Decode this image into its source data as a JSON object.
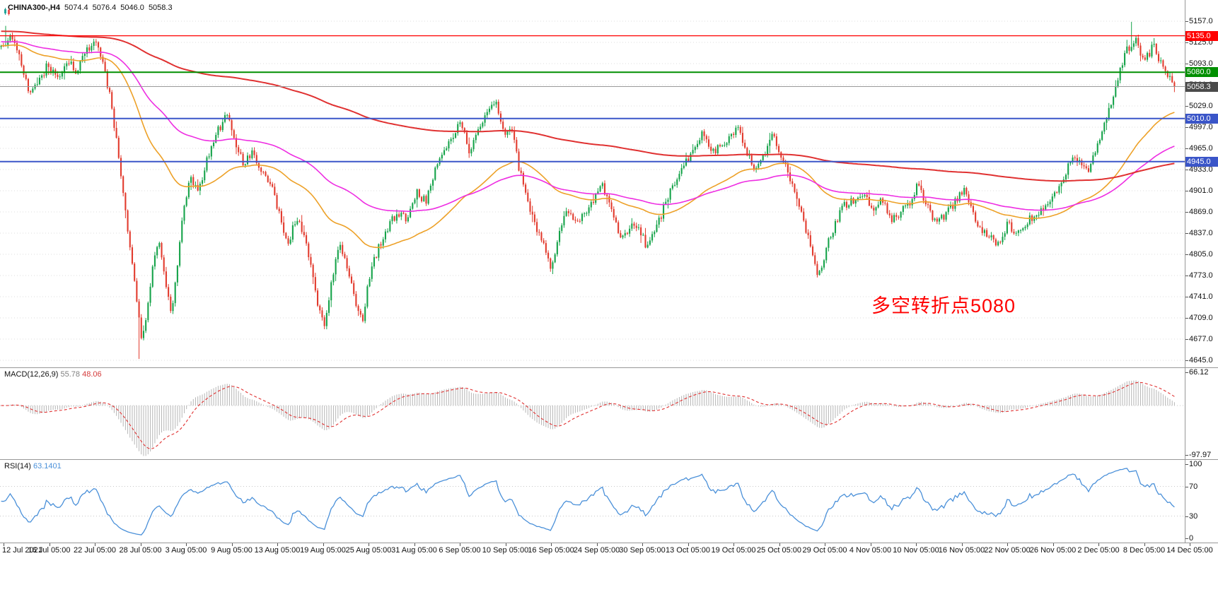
{
  "header": {
    "symbol_tf": "CHINA300-,H4",
    "open": "5074.4",
    "high": "5076.4",
    "low": "5046.0",
    "close": "5058.3"
  },
  "chart_data": {
    "type": "candlestick",
    "title": "CHINA300-,H4",
    "symbol": "CHINA300-",
    "timeframe": "H4",
    "current_bar": {
      "open": 5074.4,
      "high": 5076.4,
      "low": 5046.0,
      "close": 5058.3
    },
    "ylim": [
      4645,
      5157
    ],
    "y_ticks": [
      "5157.0",
      "5125.0",
      "5093.0",
      "5061.0",
      "5029.0",
      "4997.0",
      "4965.0",
      "4933.0",
      "4901.0",
      "4869.0",
      "4837.0",
      "4805.0",
      "4773.0",
      "4741.0",
      "4709.0",
      "4677.0",
      "4645.0"
    ],
    "x_labels": [
      "12 Jul 2021",
      "16 Jul 05:00",
      "22 Jul 05:00",
      "28 Jul 05:00",
      "3 Aug 05:00",
      "9 Aug 05:00",
      "13 Aug 05:00",
      "19 Aug 05:00",
      "25 Aug 05:00",
      "31 Aug 05:00",
      "6 Sep 05:00",
      "10 Sep 05:00",
      "16 Sep 05:00",
      "24 Sep 05:00",
      "30 Sep 05:00",
      "13 Oct 05:00",
      "19 Oct 05:00",
      "25 Oct 05:00",
      "29 Oct 05:00",
      "4 Nov 05:00",
      "10 Nov 05:00",
      "16 Nov 05:00",
      "22 Nov 05:00",
      "26 Nov 05:00",
      "2 Dec 05:00",
      "8 Dec 05:00",
      "14 Dec 05:00"
    ],
    "n_candles": 520,
    "last_close": 5058.3,
    "price_path": [
      [
        0,
        5118
      ],
      [
        0.008,
        5138
      ],
      [
        0.016,
        5098
      ],
      [
        0.024,
        5052
      ],
      [
        0.032,
        5066
      ],
      [
        0.04,
        5092
      ],
      [
        0.048,
        5068
      ],
      [
        0.056,
        5100
      ],
      [
        0.064,
        5082
      ],
      [
        0.072,
        5108
      ],
      [
        0.08,
        5128
      ],
      [
        0.088,
        5086
      ],
      [
        0.094,
        5030
      ],
      [
        0.1,
        4956
      ],
      [
        0.106,
        4870
      ],
      [
        0.111,
        4798
      ],
      [
        0.115,
        4740
      ],
      [
        0.119,
        4682
      ],
      [
        0.124,
        4706
      ],
      [
        0.129,
        4790
      ],
      [
        0.134,
        4830
      ],
      [
        0.14,
        4760
      ],
      [
        0.145,
        4712
      ],
      [
        0.151,
        4800
      ],
      [
        0.155,
        4872
      ],
      [
        0.161,
        4920
      ],
      [
        0.168,
        4896
      ],
      [
        0.175,
        4946
      ],
      [
        0.184,
        4988
      ],
      [
        0.192,
        5018
      ],
      [
        0.2,
        4972
      ],
      [
        0.207,
        4942
      ],
      [
        0.214,
        4958
      ],
      [
        0.222,
        4930
      ],
      [
        0.231,
        4902
      ],
      [
        0.238,
        4858
      ],
      [
        0.245,
        4822
      ],
      [
        0.252,
        4862
      ],
      [
        0.259,
        4826
      ],
      [
        0.264,
        4786
      ],
      [
        0.27,
        4722
      ],
      [
        0.276,
        4696
      ],
      [
        0.282,
        4768
      ],
      [
        0.289,
        4822
      ],
      [
        0.296,
        4776
      ],
      [
        0.302,
        4732
      ],
      [
        0.308,
        4702
      ],
      [
        0.314,
        4772
      ],
      [
        0.321,
        4812
      ],
      [
        0.33,
        4848
      ],
      [
        0.338,
        4868
      ],
      [
        0.346,
        4858
      ],
      [
        0.354,
        4898
      ],
      [
        0.362,
        4886
      ],
      [
        0.371,
        4938
      ],
      [
        0.385,
        4986
      ],
      [
        0.392,
        5008
      ],
      [
        0.399,
        4962
      ],
      [
        0.407,
        4992
      ],
      [
        0.415,
        5028
      ],
      [
        0.421,
        5036
      ],
      [
        0.428,
        4990
      ],
      [
        0.435,
        4998
      ],
      [
        0.442,
        4930
      ],
      [
        0.451,
        4870
      ],
      [
        0.462,
        4820
      ],
      [
        0.468,
        4782
      ],
      [
        0.475,
        4832
      ],
      [
        0.482,
        4868
      ],
      [
        0.49,
        4850
      ],
      [
        0.504,
        4882
      ],
      [
        0.512,
        4912
      ],
      [
        0.52,
        4868
      ],
      [
        0.528,
        4830
      ],
      [
        0.542,
        4852
      ],
      [
        0.55,
        4816
      ],
      [
        0.558,
        4842
      ],
      [
        0.566,
        4882
      ],
      [
        0.575,
        4915
      ],
      [
        0.581,
        4935
      ],
      [
        0.59,
        4965
      ],
      [
        0.598,
        4988
      ],
      [
        0.606,
        4958
      ],
      [
        0.619,
        4976
      ],
      [
        0.627,
        4998
      ],
      [
        0.635,
        4962
      ],
      [
        0.643,
        4930
      ],
      [
        0.651,
        4958
      ],
      [
        0.658,
        4988
      ],
      [
        0.666,
        4948
      ],
      [
        0.674,
        4908
      ],
      [
        0.682,
        4868
      ],
      [
        0.69,
        4818
      ],
      [
        0.696,
        4766
      ],
      [
        0.703,
        4812
      ],
      [
        0.711,
        4852
      ],
      [
        0.719,
        4880
      ],
      [
        0.735,
        4898
      ],
      [
        0.743,
        4868
      ],
      [
        0.751,
        4888
      ],
      [
        0.759,
        4856
      ],
      [
        0.773,
        4880
      ],
      [
        0.781,
        4908
      ],
      [
        0.789,
        4878
      ],
      [
        0.797,
        4850
      ],
      [
        0.812,
        4880
      ],
      [
        0.82,
        4904
      ],
      [
        0.828,
        4868
      ],
      [
        0.836,
        4840
      ],
      [
        0.85,
        4822
      ],
      [
        0.858,
        4850
      ],
      [
        0.866,
        4832
      ],
      [
        0.874,
        4856
      ],
      [
        0.889,
        4872
      ],
      [
        0.897,
        4892
      ],
      [
        0.905,
        4922
      ],
      [
        0.913,
        4948
      ],
      [
        0.927,
        4932
      ],
      [
        0.935,
        4972
      ],
      [
        0.943,
        5015
      ],
      [
        0.951,
        5062
      ],
      [
        0.958,
        5108
      ],
      [
        0.966,
        5132
      ],
      [
        0.974,
        5092
      ],
      [
        0.982,
        5122
      ],
      [
        0.99,
        5086
      ],
      [
        1,
        5058.3
      ]
    ],
    "spikes": [
      {
        "f": 0.004,
        "high": 5150
      },
      {
        "f": 0.118,
        "low": 4647
      },
      {
        "f": 0.963,
        "high": 5156
      }
    ],
    "candle_up_color": "#16A34A",
    "candle_down_color": "#E23B2E",
    "moving_averages": [
      {
        "name": "ma-fast-orange",
        "color": "#EDA128",
        "period": 65
      },
      {
        "name": "ma-mid-magenta",
        "color": "#EE2EE2",
        "period": 130
      },
      {
        "name": "ma-slow-red",
        "color": "#E03131",
        "period": 420
      }
    ],
    "h_levels": [
      {
        "price": 5135.0,
        "label": "5135.0",
        "color": "#FF0000",
        "width": 1.3
      },
      {
        "price": 5080.0,
        "label": "5080.0",
        "color": "#008F00",
        "width": 2
      },
      {
        "price": 5010.0,
        "label": "5010.0",
        "color": "#3A55C8",
        "width": 2
      },
      {
        "price": 4945.0,
        "label": "4945.0",
        "color": "#3A55C8",
        "width": 2
      }
    ],
    "current_price": {
      "value": 5058.3,
      "label": "5058.3",
      "line_color": "#9A9A9A",
      "tag_bg": "#4A4A4A"
    },
    "indicators": {
      "macd": {
        "label": "MACD(12,26,9)",
        "value_main": "55.78",
        "value_signal": "48.06",
        "fast": 12,
        "slow": 26,
        "signal": 9,
        "axis_max": 66.12,
        "axis_min": -97.97,
        "axis_max_label": "66.12",
        "axis_min_label": "-97.97",
        "histogram_color": "#B6B6B6",
        "signal_color": "#E03030"
      },
      "rsi": {
        "label": "RSI(14)",
        "value": "63.1401",
        "period": 14,
        "ticks": [
          100,
          70,
          30,
          0
        ],
        "levels": [
          70,
          30
        ],
        "line_color": "#4A90D9"
      }
    },
    "annotation": {
      "text": "多空转折点5080",
      "color": "#FF0000"
    }
  }
}
